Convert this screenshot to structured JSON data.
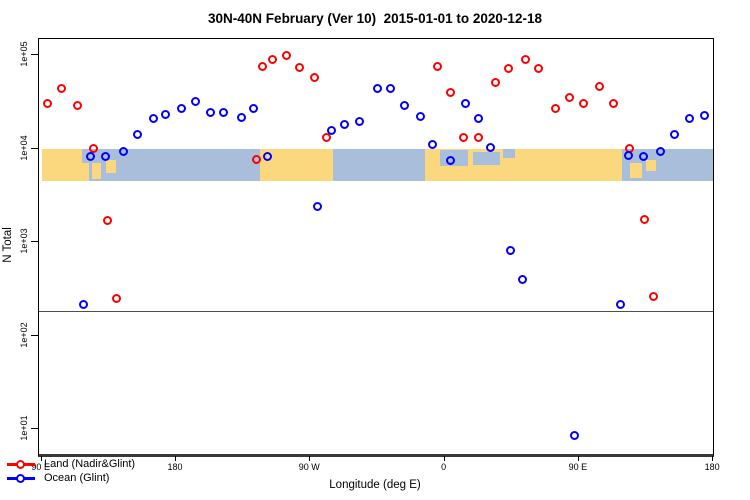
{
  "chart_data": {
    "type": "scatter",
    "title": "30N-40N February (Ver 10)  2015-01-01 to 2020-12-18",
    "xlabel": "Longitude (deg E)",
    "ylabel": "N Total",
    "x_axis": {
      "wraps": "axis runs eastward from 90E around the globe to 180 (450 deg span)",
      "ticks": [
        {
          "lon": 90,
          "label": "90 E"
        },
        {
          "lon": 180,
          "label": "180"
        },
        {
          "lon": 270,
          "label": "90 W"
        },
        {
          "lon": 360,
          "label": "0"
        },
        {
          "lon": 450,
          "label": "90 E"
        },
        {
          "lon": 540,
          "label": "180"
        }
      ]
    },
    "y_axis": {
      "scale": "log",
      "ticks": [
        {
          "n": 100000,
          "label": "1e+05"
        },
        {
          "n": 10000,
          "label": "1e+04"
        },
        {
          "n": 1000,
          "label": "1e+03"
        },
        {
          "n": 100,
          "label": "1e+02"
        },
        {
          "n": 10,
          "label": "1e+01"
        }
      ]
    },
    "threshold_line": {
      "n": 185,
      "color": "#4d4d4d"
    },
    "map_band": {
      "description": "world-map strip of the 30N-40N latitude zone drawn across the plot",
      "n_top": 10000,
      "n_bottom": 4500,
      "land_color": "#FBD77E",
      "ocean_color": "#A9BEDB",
      "base_segments": [
        {
          "from": 90,
          "to": 122,
          "type": "land"
        },
        {
          "from": 122,
          "to": 236,
          "type": "ocean"
        },
        {
          "from": 236,
          "to": 285,
          "type": "land"
        },
        {
          "from": 285,
          "to": 347,
          "type": "ocean"
        },
        {
          "from": 347,
          "to": 479,
          "type": "land"
        },
        {
          "from": 479,
          "to": 540,
          "type": "ocean"
        }
      ],
      "patches": [
        {
          "from": 117,
          "to": 123,
          "top": 0.0,
          "bottom": 0.45,
          "type": "ocean"
        },
        {
          "from": 124,
          "to": 130,
          "top": 0.45,
          "bottom": 0.95,
          "type": "land"
        },
        {
          "from": 133,
          "to": 140,
          "top": 0.35,
          "bottom": 0.75,
          "type": "land"
        },
        {
          "from": 357,
          "to": 376,
          "top": 0.05,
          "bottom": 0.55,
          "type": "ocean"
        },
        {
          "from": 379,
          "to": 397,
          "top": 0.1,
          "bottom": 0.5,
          "type": "ocean"
        },
        {
          "from": 399,
          "to": 407,
          "top": 0.0,
          "bottom": 0.3,
          "type": "ocean"
        },
        {
          "from": 484,
          "to": 492,
          "top": 0.45,
          "bottom": 0.9,
          "type": "land"
        },
        {
          "from": 495,
          "to": 502,
          "top": 0.35,
          "bottom": 0.7,
          "type": "land"
        }
      ]
    },
    "series": [
      {
        "name": "Land (Nadir&Glint)",
        "color": "#FF0000",
        "points": [
          [
            94,
            30000
          ],
          [
            103,
            44000
          ],
          [
            114,
            29000
          ],
          [
            125,
            10000
          ],
          [
            134,
            1700
          ],
          [
            140,
            250
          ],
          [
            234,
            7700
          ],
          [
            238,
            76000
          ],
          [
            245,
            89000
          ],
          [
            254,
            100000
          ],
          [
            263,
            74000
          ],
          [
            273,
            58000
          ],
          [
            281,
            13000
          ],
          [
            355,
            76000
          ],
          [
            364,
            40000
          ],
          [
            373,
            13000
          ],
          [
            383,
            13000
          ],
          [
            394,
            51000
          ],
          [
            403,
            71000
          ],
          [
            414,
            89000
          ],
          [
            423,
            72000
          ],
          [
            434,
            27000
          ],
          [
            444,
            35000
          ],
          [
            453,
            30000
          ],
          [
            464,
            46000
          ],
          [
            473,
            30000
          ],
          [
            484,
            10000
          ],
          [
            494,
            1750
          ],
          [
            500,
            260
          ]
        ]
      },
      {
        "name": "Ocean (Glint)",
        "color": "#0000FF",
        "points": [
          [
            118,
            215
          ],
          [
            123,
            8300
          ],
          [
            133,
            8200
          ],
          [
            145,
            9400
          ],
          [
            154,
            14000
          ],
          [
            165,
            21000
          ],
          [
            173,
            23000
          ],
          [
            184,
            27000
          ],
          [
            193,
            32000
          ],
          [
            203,
            24500
          ],
          [
            212,
            24000
          ],
          [
            224,
            21400
          ],
          [
            232,
            27000
          ],
          [
            241,
            8300
          ],
          [
            275,
            2400
          ],
          [
            284,
            15500
          ],
          [
            293,
            18000
          ],
          [
            303,
            19500
          ],
          [
            315,
            44000
          ],
          [
            324,
            44000
          ],
          [
            333,
            29000
          ],
          [
            344,
            22000
          ],
          [
            352,
            11000
          ],
          [
            364,
            7400
          ],
          [
            374,
            30000
          ],
          [
            383,
            21000
          ],
          [
            391,
            10300
          ],
          [
            404,
            815
          ],
          [
            412,
            400
          ],
          [
            447,
            8.6
          ],
          [
            478,
            215
          ],
          [
            483,
            8400
          ],
          [
            493,
            8300
          ],
          [
            505,
            9300
          ],
          [
            514,
            14000
          ],
          [
            524,
            21000
          ],
          [
            534,
            22500
          ]
        ]
      }
    ]
  }
}
